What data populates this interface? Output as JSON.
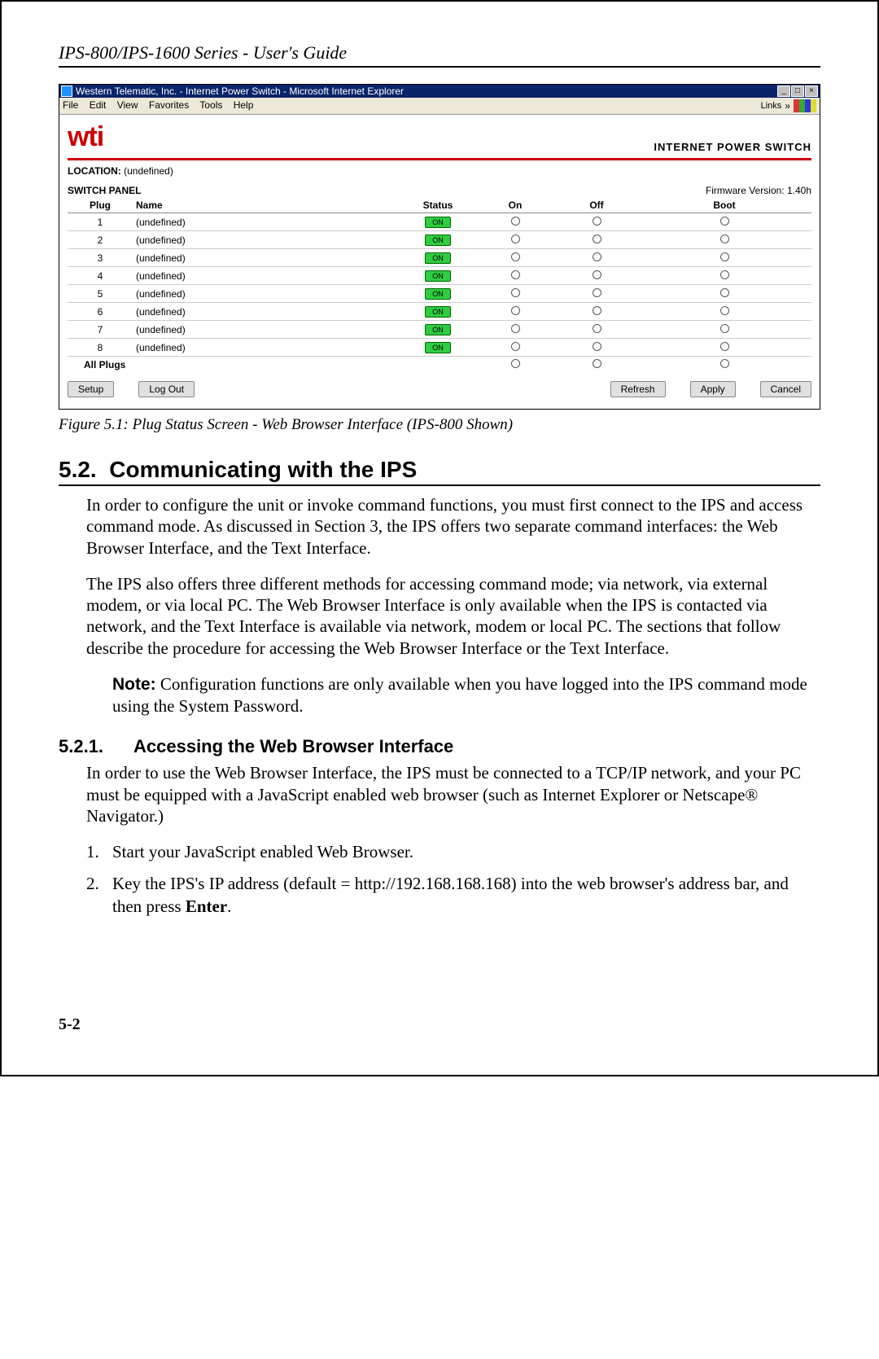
{
  "header": "IPS-800/IPS-1600 Series - User's Guide",
  "browser": {
    "title": "Western Telematic, Inc. - Internet Power Switch - Microsoft Internet Explorer",
    "menus": [
      "File",
      "Edit",
      "View",
      "Favorites",
      "Tools",
      "Help"
    ],
    "links_label": "Links"
  },
  "app": {
    "logo_text": "wti",
    "product_label": "INTERNET POWER SWITCH",
    "location_label": "LOCATION:",
    "location_value": "(undefined)",
    "panel_label": "SWITCH PANEL",
    "firmware_label": "Firmware Version: 1.40h",
    "columns": {
      "plug": "Plug",
      "name": "Name",
      "status": "Status",
      "on": "On",
      "off": "Off",
      "boot": "Boot"
    },
    "rows": [
      {
        "plug": "1",
        "name": "(undefined)",
        "status": "ON"
      },
      {
        "plug": "2",
        "name": "(undefined)",
        "status": "ON"
      },
      {
        "plug": "3",
        "name": "(undefined)",
        "status": "ON"
      },
      {
        "plug": "4",
        "name": "(undefined)",
        "status": "ON"
      },
      {
        "plug": "5",
        "name": "(undefined)",
        "status": "ON"
      },
      {
        "plug": "6",
        "name": "(undefined)",
        "status": "ON"
      },
      {
        "plug": "7",
        "name": "(undefined)",
        "status": "ON"
      },
      {
        "plug": "8",
        "name": "(undefined)",
        "status": "ON"
      }
    ],
    "all_plugs_label": "All Plugs",
    "buttons": {
      "setup": "Setup",
      "logout": "Log Out",
      "refresh": "Refresh",
      "apply": "Apply",
      "cancel": "Cancel"
    }
  },
  "figcaption": "Figure 5.1:  Plug Status Screen - Web Browser Interface (IPS-800 Shown)",
  "sec52": {
    "num": "5.2.",
    "title": "Communicating with the IPS",
    "p1": "In order to configure the unit or invoke command functions, you must first connect to the IPS and access command mode.  As discussed in Section 3, the IPS offers two separate command interfaces: the Web Browser Interface, and the Text Interface.",
    "p2": "The IPS also offers three different methods for accessing command mode; via network, via external modem, or via local PC.  The Web Browser Interface is only available when the IPS is contacted via network, and the Text Interface is available via network, modem or local PC.  The sections that follow describe the procedure for accessing the Web Browser Interface or the Text Interface."
  },
  "note": {
    "label": "Note:",
    "text": "Configuration functions are only available when you have logged into the IPS command mode using the System Password."
  },
  "sec521": {
    "num": "5.2.1.",
    "title": "Accessing the Web Browser Interface",
    "p1": "In order to use the Web Browser Interface, the IPS must be connected to a TCP/IP network, and your PC must be equipped with a JavaScript enabled web browser (such as Internet Explorer or Netscape® Navigator.)",
    "step1": "Start your JavaScript enabled Web Browser.",
    "step2a": "Key the IPS's IP address (default = http://192.168.168.168) into the web browser's address bar, and then press ",
    "step2b": "Enter",
    "step2c": "."
  },
  "pagenum": "5-2"
}
